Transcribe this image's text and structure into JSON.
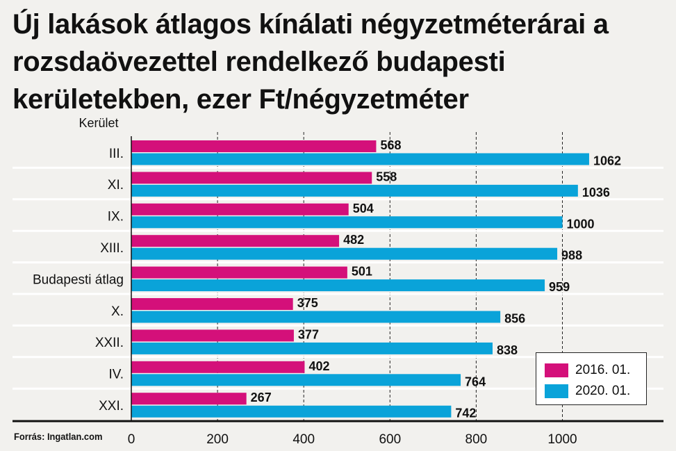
{
  "chart_data": {
    "type": "bar",
    "orientation": "horizontal",
    "title": "Új lakások átlagos kínálati négyzetméterárai a rozsdaövezettel rendelkező budapesti kerületekben, ezer Ft/négyzetméter",
    "ylabel": "Kerület",
    "xlabel": "",
    "categories": [
      "III.",
      "XI.",
      "IX.",
      "XIII.",
      "Budapesti átlag",
      "X.",
      "XXII.",
      "IV.",
      "XXI."
    ],
    "series": [
      {
        "name": "2016. 01.",
        "color": "#d4107a",
        "values": [
          568,
          558,
          504,
          482,
          501,
          375,
          377,
          402,
          267
        ]
      },
      {
        "name": "2020. 01.",
        "color": "#0aa3d9",
        "values": [
          1062,
          1036,
          1000,
          988,
          959,
          856,
          838,
          764,
          742
        ]
      }
    ],
    "xlim": [
      0,
      1000
    ],
    "xticks": [
      0,
      200,
      400,
      600,
      800,
      1000
    ],
    "grid": "vertical-dashed",
    "legend_position": "bottom-right"
  },
  "source": "Forrás: Ingatlan.com"
}
